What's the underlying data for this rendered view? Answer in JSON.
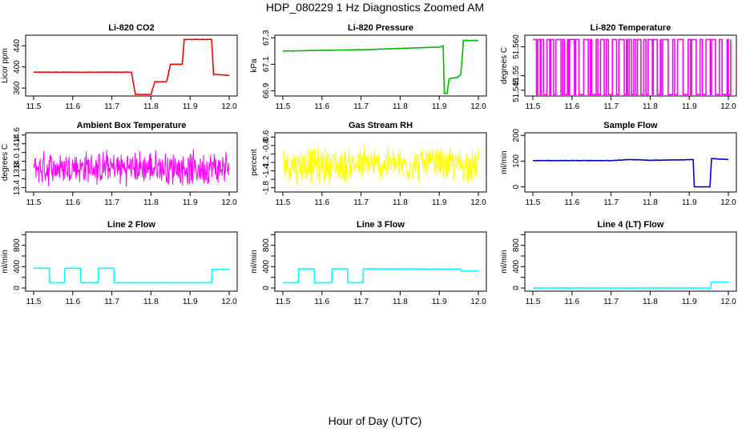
{
  "title": "HDP_080229  1 Hz Diagnostics Zoomed AM",
  "xlabel": "Hour of Day (UTC)",
  "chart_data": [
    {
      "type": "line",
      "title": "Li-820 CO2",
      "ylabel": "Licor ppm",
      "color": "#ff0000",
      "xlim": [
        11.5,
        12.0
      ],
      "ylim": [
        345,
        460
      ],
      "xticks": [
        "11.5",
        "11.6",
        "11.7",
        "11.8",
        "11.9",
        "12.0"
      ],
      "yticks": [
        360,
        400,
        440
      ],
      "ytick_labels": [
        "360",
        "400",
        "440"
      ],
      "series": [
        {
          "points": [
            [
              11.5,
              390
            ],
            [
              11.75,
              390
            ],
            [
              11.76,
              348
            ],
            [
              11.8,
              348
            ],
            [
              11.81,
              372
            ],
            [
              11.84,
              372
            ],
            [
              11.85,
              405
            ],
            [
              11.88,
              405
            ],
            [
              11.885,
              452
            ],
            [
              11.955,
              452
            ],
            [
              11.96,
              386
            ],
            [
              12.0,
              384
            ]
          ]
        }
      ]
    },
    {
      "type": "line",
      "title": "Li-820 Pressure",
      "ylabel": "kPa",
      "color": "#00bb00",
      "xlim": [
        11.5,
        12.0
      ],
      "ylim": [
        66.86,
        67.32
      ],
      "xticks": [
        "11.5",
        "11.6",
        "11.7",
        "11.8",
        "11.9",
        "12.0"
      ],
      "yticks": [
        66.9,
        67.1,
        67.3
      ],
      "ytick_labels": [
        "66.9",
        "67.1",
        "67.3"
      ],
      "series": [
        {
          "points": [
            [
              11.5,
              67.2
            ],
            [
              11.6,
              67.205
            ],
            [
              11.7,
              67.21
            ],
            [
              11.8,
              67.22
            ],
            [
              11.9,
              67.23
            ],
            [
              11.91,
              67.24
            ],
            [
              11.913,
              66.88
            ],
            [
              11.92,
              66.88
            ],
            [
              11.925,
              66.99
            ],
            [
              11.945,
              67.0
            ],
            [
              11.955,
              67.02
            ],
            [
              11.962,
              67.28
            ],
            [
              12.0,
              67.28
            ]
          ]
        }
      ]
    },
    {
      "type": "line",
      "title": "Li-820 Temperature",
      "ylabel": "degrees C",
      "color": "#ff00ff",
      "xlim": [
        11.5,
        12.0
      ],
      "ylim": [
        51.543,
        51.564
      ],
      "xticks": [
        "11.5",
        "11.6",
        "11.7",
        "11.8",
        "11.9",
        "12.0"
      ],
      "yticks": [
        51.545,
        51.55,
        51.56
      ],
      "ytick_labels": [
        "51.545",
        "51.55",
        "51.560"
      ],
      "series": [
        {
          "points": [],
          "pattern": "square_wave"
        }
      ]
    },
    {
      "type": "line",
      "title": "Ambient Box Temperature",
      "ylabel": "degrees C",
      "color": "#ff00ff",
      "xlim": [
        11.5,
        12.0
      ],
      "ylim": [
        13.3,
        14.65
      ],
      "xticks": [
        "11.5",
        "11.6",
        "11.7",
        "11.8",
        "11.9",
        "12.0"
      ],
      "yticks": [
        13.4,
        13.6,
        13.8,
        14.0,
        14.2,
        14.4,
        14.6
      ],
      "ytick_labels": [
        "13.4",
        "",
        "13.8",
        "14.0",
        "",
        "14.4",
        "14.6"
      ],
      "series": [
        {
          "points": [],
          "pattern": "noise",
          "center": 13.85,
          "amplitude": 0.45
        }
      ]
    },
    {
      "type": "line",
      "title": "Gas Stream RH",
      "ylabel": "percent",
      "color": "#ffff00",
      "xlim": [
        11.5,
        12.0
      ],
      "ylim": [
        -1.9,
        -0.5
      ],
      "xticks": [
        "11.5",
        "11.6",
        "11.7",
        "11.8",
        "11.9",
        "12.0"
      ],
      "yticks": [
        -1.8,
        -1.6,
        -1.4,
        -1.2,
        -1.0,
        -0.8,
        -0.6
      ],
      "ytick_labels": [
        "-1.8",
        "",
        "-1.4",
        "-1.2",
        "",
        "-0.8",
        "-0.6"
      ],
      "series": [
        {
          "points": [],
          "pattern": "noise",
          "center": -1.25,
          "amplitude": 0.5
        }
      ]
    },
    {
      "type": "line",
      "title": "Sample Flow",
      "ylabel": "ml/min",
      "color": "#0000cc",
      "xlim": [
        11.5,
        12.0
      ],
      "ylim": [
        -20,
        210
      ],
      "xticks": [
        "11.5",
        "11.6",
        "11.7",
        "11.8",
        "11.9",
        "12.0"
      ],
      "yticks": [
        0,
        100,
        200
      ],
      "ytick_labels": [
        "0",
        "100",
        "200"
      ],
      "series": [
        {
          "points": [
            [
              11.5,
              102
            ],
            [
              11.7,
              102
            ],
            [
              11.75,
              106
            ],
            [
              11.8,
              103
            ],
            [
              11.91,
              106
            ],
            [
              11.913,
              0
            ],
            [
              11.953,
              0
            ],
            [
              11.957,
              110
            ],
            [
              12.0,
              106
            ]
          ]
        }
      ]
    },
    {
      "type": "line",
      "title": "Line 2 Flow",
      "ylabel": "ml/min",
      "color": "#00ffff",
      "xlim": [
        11.5,
        12.0
      ],
      "ylim": [
        -60,
        1050
      ],
      "xticks": [
        "11.5",
        "11.6",
        "11.7",
        "11.8",
        "11.9",
        "12.0"
      ],
      "yticks": [
        0,
        200,
        400,
        600,
        800,
        1000
      ],
      "ytick_labels": [
        "0",
        "",
        "400",
        "",
        "800",
        ""
      ],
      "series": [
        {
          "points": [
            [
              11.5,
              370
            ],
            [
              11.54,
              370
            ],
            [
              11.541,
              100
            ],
            [
              11.579,
              100
            ],
            [
              11.58,
              370
            ],
            [
              11.62,
              370
            ],
            [
              11.621,
              100
            ],
            [
              11.665,
              100
            ],
            [
              11.666,
              370
            ],
            [
              11.705,
              370
            ],
            [
              11.706,
              100
            ],
            [
              11.955,
              100
            ],
            [
              11.956,
              350
            ],
            [
              12.0,
              350
            ]
          ]
        }
      ]
    },
    {
      "type": "line",
      "title": "Line 3 Flow",
      "ylabel": "ml/min",
      "color": "#00ffff",
      "xlim": [
        11.5,
        12.0
      ],
      "ylim": [
        -60,
        1050
      ],
      "xticks": [
        "11.5",
        "11.6",
        "11.7",
        "11.8",
        "11.9",
        "12.0"
      ],
      "yticks": [
        0,
        200,
        400,
        600,
        800,
        1000
      ],
      "ytick_labels": [
        "0",
        "",
        "400",
        "",
        "800",
        ""
      ],
      "series": [
        {
          "points": [
            [
              11.5,
              100
            ],
            [
              11.54,
              100
            ],
            [
              11.541,
              360
            ],
            [
              11.58,
              360
            ],
            [
              11.581,
              100
            ],
            [
              11.625,
              100
            ],
            [
              11.626,
              360
            ],
            [
              11.665,
              360
            ],
            [
              11.666,
              100
            ],
            [
              11.705,
              100
            ],
            [
              11.706,
              360
            ],
            [
              11.955,
              355
            ],
            [
              11.956,
              320
            ],
            [
              12.0,
              320
            ]
          ]
        }
      ]
    },
    {
      "type": "line",
      "title": "Line 4 (LT) Flow",
      "ylabel": "ml/min",
      "color": "#00ffff",
      "xlim": [
        11.5,
        12.0
      ],
      "ylim": [
        -60,
        1050
      ],
      "xticks": [
        "11.5",
        "11.6",
        "11.7",
        "11.8",
        "11.9",
        "12.0"
      ],
      "yticks": [
        0,
        200,
        400,
        600,
        800,
        1000
      ],
      "ytick_labels": [
        "0",
        "",
        "400",
        "",
        "800",
        ""
      ],
      "series": [
        {
          "points": [
            [
              11.5,
              0
            ],
            [
              11.955,
              0
            ],
            [
              11.956,
              110
            ],
            [
              12.0,
              110
            ]
          ]
        }
      ]
    }
  ]
}
